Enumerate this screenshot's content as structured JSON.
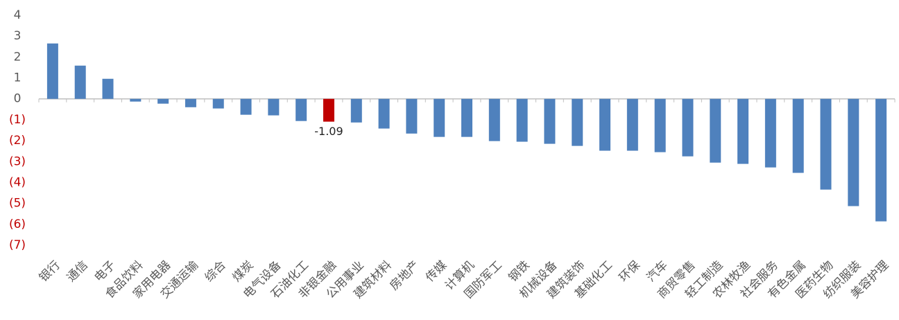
{
  "chart_data": {
    "type": "bar",
    "categories": [
      "银行",
      "通信",
      "电子",
      "食品饮料",
      "家用电器",
      "交通运输",
      "综合",
      "煤炭",
      "电气设备",
      "石油化工",
      "非银金融",
      "公用事业",
      "建筑材料",
      "房地产",
      "传媒",
      "计算机",
      "国防军工",
      "钢铁",
      "机械设备",
      "建筑装饰",
      "基础化工",
      "环保",
      "汽车",
      "商贸零售",
      "轻工制造",
      "农林牧渔",
      "社会服务",
      "有色金属",
      "医药生物",
      "纺织服装",
      "美容护理"
    ],
    "values": [
      2.65,
      1.59,
      0.96,
      -0.13,
      -0.23,
      -0.4,
      -0.46,
      -0.76,
      -0.79,
      -1.06,
      -1.09,
      -1.13,
      -1.42,
      -1.66,
      -1.82,
      -1.82,
      -2.02,
      -2.05,
      -2.15,
      -2.25,
      -2.48,
      -2.48,
      -2.55,
      -2.75,
      -3.05,
      -3.11,
      -3.28,
      -3.54,
      -4.34,
      -5.13,
      -5.86
    ],
    "value_labels": [
      null,
      null,
      null,
      null,
      null,
      null,
      null,
      null,
      null,
      null,
      "-1.09",
      null,
      null,
      null,
      null,
      null,
      null,
      null,
      null,
      null,
      null,
      null,
      null,
      null,
      null,
      null,
      null,
      null,
      null,
      null,
      null
    ],
    "colors": [
      "#4f81bd",
      "#4f81bd",
      "#4f81bd",
      "#4f81bd",
      "#4f81bd",
      "#4f81bd",
      "#4f81bd",
      "#4f81bd",
      "#4f81bd",
      "#4f81bd",
      "#c00000",
      "#4f81bd",
      "#4f81bd",
      "#4f81bd",
      "#4f81bd",
      "#4f81bd",
      "#4f81bd",
      "#4f81bd",
      "#4f81bd",
      "#4f81bd",
      "#4f81bd",
      "#4f81bd",
      "#4f81bd",
      "#4f81bd",
      "#4f81bd",
      "#4f81bd",
      "#4f81bd",
      "#4f81bd",
      "#4f81bd",
      "#4f81bd",
      "#4f81bd"
    ],
    "ylim": [
      -7,
      4
    ],
    "yticks": [
      4,
      3,
      2,
      1,
      0,
      {
        "value": -1,
        "label": "(1)"
      },
      {
        "value": -2,
        "label": "(2)"
      },
      {
        "value": -3,
        "label": "(3)"
      },
      {
        "value": -4,
        "label": "(4)"
      },
      {
        "value": -5,
        "label": "(5)"
      },
      {
        "value": -6,
        "label": "(6)"
      },
      {
        "value": -7,
        "label": "(7)"
      }
    ],
    "negative_tick_color": "#c00000",
    "grid": false
  }
}
